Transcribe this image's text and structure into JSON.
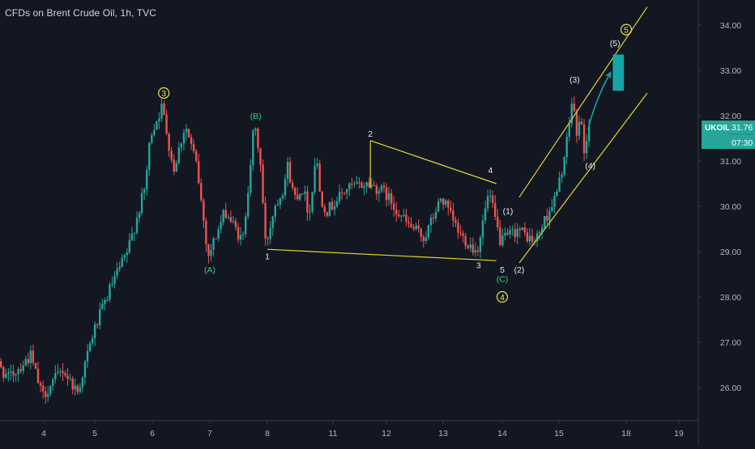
{
  "header": {
    "title": "CFDs on Brent Crude Oil, 1h, TVC"
  },
  "price_tag": {
    "symbol": "UKOIL",
    "price": "31.76",
    "countdown": "07:30"
  },
  "colors": {
    "background": "#131722",
    "up": "#26a69a",
    "down": "#ef5350",
    "channel": "#e6d42e",
    "target_box": "#17a3a3",
    "wave_label_green": "#35d07f",
    "wave_label_white": "#e8e8e8",
    "circle_label": "#f0e34a",
    "price_tag_bg": "#26a69a",
    "axis_text": "#b2b5be",
    "axis_line": "#363a45"
  },
  "chart_data": {
    "type": "candlestick",
    "title": "CFDs on Brent Crude Oil, 1h, TVC",
    "xlabel": "",
    "ylabel": "",
    "ylim": [
      25.5,
      34.6
    ],
    "x_ticks": [
      "4",
      "5",
      "6",
      "7",
      "8",
      "11",
      "12",
      "13",
      "14",
      "15",
      "18",
      "19"
    ],
    "y_ticks": [
      "26.00",
      "27.00",
      "28.00",
      "29.00",
      "30.00",
      "31.00",
      "32.00",
      "33.00",
      "34.00"
    ],
    "last_price": 31.76,
    "grid": false,
    "price_path": [
      {
        "x": "3",
        "y": 26.9
      },
      {
        "x": "3.4",
        "y": 26.2
      },
      {
        "x": "3.8",
        "y": 26.7
      },
      {
        "x": "4",
        "y": 25.8
      },
      {
        "x": "4.4",
        "y": 26.4
      },
      {
        "x": "4.7",
        "y": 25.9
      },
      {
        "x": "5",
        "y": 27.2
      },
      {
        "x": "5.3",
        "y": 28.2
      },
      {
        "x": "5.6",
        "y": 29.0
      },
      {
        "x": "5.9",
        "y": 30.4
      },
      {
        "x": "6",
        "y": 31.6
      },
      {
        "x": "6.2",
        "y": 32.2
      },
      {
        "x": "6.4",
        "y": 30.8
      },
      {
        "x": "6.6",
        "y": 31.8
      },
      {
        "x": "6.8",
        "y": 30.9
      },
      {
        "x": "7",
        "y": 28.9
      },
      {
        "x": "7.3",
        "y": 29.9
      },
      {
        "x": "7.6",
        "y": 29.2
      },
      {
        "x": "7.8",
        "y": 31.8
      },
      {
        "x": "7.9",
        "y": 31.1
      },
      {
        "x": "8",
        "y": 29.1
      },
      {
        "x": "8.4",
        "y": 30.0
      },
      {
        "x": "8.8",
        "y": 30.4
      },
      {
        "x": "9",
        "y": 30.9
      },
      {
        "x": "9.3",
        "y": 30.2
      },
      {
        "x": "9.7",
        "y": 30.4
      },
      {
        "x": "10",
        "y": 29.8
      },
      {
        "x": "10.3",
        "y": 31.2
      },
      {
        "x": "10.5",
        "y": 30.2
      },
      {
        "x": "10.8",
        "y": 29.9
      },
      {
        "x": "11.3",
        "y": 30.4
      },
      {
        "x": "11.7",
        "y": 30.5
      },
      {
        "x": "12",
        "y": 30.3
      },
      {
        "x": "12.4",
        "y": 29.6
      },
      {
        "x": "12.7",
        "y": 29.3
      },
      {
        "x": "13",
        "y": 30.2
      },
      {
        "x": "13.3",
        "y": 29.4
      },
      {
        "x": "13.6",
        "y": 29.0
      },
      {
        "x": "13.8",
        "y": 30.3
      },
      {
        "x": "14",
        "y": 29.2
      },
      {
        "x": "14.3",
        "y": 29.5
      },
      {
        "x": "14.6",
        "y": 29.2
      },
      {
        "x": "15",
        "y": 30.3
      },
      {
        "x": "15.4",
        "y": 31.3
      },
      {
        "x": "15.7",
        "y": 32.5
      },
      {
        "x": "15.85",
        "y": 31.4
      },
      {
        "x": "16",
        "y": 32.1
      },
      {
        "x": "16.2",
        "y": 31.2
      },
      {
        "x": "16.4",
        "y": 31.76
      }
    ],
    "wave_labels": [
      {
        "text": "3",
        "circled": true,
        "x": "6.2",
        "y": 32.5
      },
      {
        "text": "(A)",
        "circled": false,
        "x": "7",
        "y": 28.6
      },
      {
        "text": "(B)",
        "circled": false,
        "x": "7.8",
        "y": 32.0
      },
      {
        "text": "1",
        "circled": false,
        "x": "8",
        "y": 28.9
      },
      {
        "text": "2",
        "circled": false,
        "x": "11.7",
        "y": 31.6
      },
      {
        "text": "3",
        "circled": false,
        "x": "13.6",
        "y": 28.7
      },
      {
        "text": "4",
        "circled": false,
        "x": "13.8",
        "y": 30.8
      },
      {
        "text": "5",
        "circled": false,
        "x": "14",
        "y": 28.6
      },
      {
        "text": "(C)",
        "circled": false,
        "x": "14",
        "y": 28.4
      },
      {
        "text": "4",
        "circled": true,
        "x": "14",
        "y": 28.0
      },
      {
        "text": "(1)",
        "circled": false,
        "x": "14.1",
        "y": 29.9
      },
      {
        "text": "(2)",
        "circled": false,
        "x": "14.3",
        "y": 28.6
      },
      {
        "text": "(3)",
        "circled": false,
        "x": "15.7",
        "y": 32.8
      },
      {
        "text": "(4)",
        "circled": false,
        "x": "16.4",
        "y": 30.9
      },
      {
        "text": "(5)",
        "circled": false,
        "x": "17.5",
        "y": 33.6
      },
      {
        "text": "5",
        "circled": true,
        "x": "18",
        "y": 33.9
      }
    ],
    "annotations": {
      "triangle": {
        "upper": [
          {
            "x": "11.7",
            "y": 31.45
          },
          {
            "x": "13.9",
            "y": 30.5
          }
        ],
        "lower": [
          {
            "x": "8",
            "y": 29.05
          },
          {
            "x": "13.9",
            "y": 28.8
          }
        ],
        "apex_left": [
          {
            "x": "11.7",
            "y": 31.45
          },
          {
            "x": "11.7",
            "y": 30.4
          }
        ]
      },
      "channel": {
        "upper": [
          {
            "x": "14.3",
            "y": 30.2
          },
          {
            "x": "18.4",
            "y": 34.4
          }
        ],
        "lower": [
          {
            "x": "14.3",
            "y": 28.75
          },
          {
            "x": "18.4",
            "y": 32.5
          }
        ]
      },
      "arrow": {
        "from": {
          "x": "16.3",
          "y": 31.7
        },
        "to": {
          "x": "17.3",
          "y": 32.95
        }
      },
      "target_box": {
        "x0": "17.4",
        "x1": "17.9",
        "y0": 32.55,
        "y1": 33.35
      }
    }
  }
}
